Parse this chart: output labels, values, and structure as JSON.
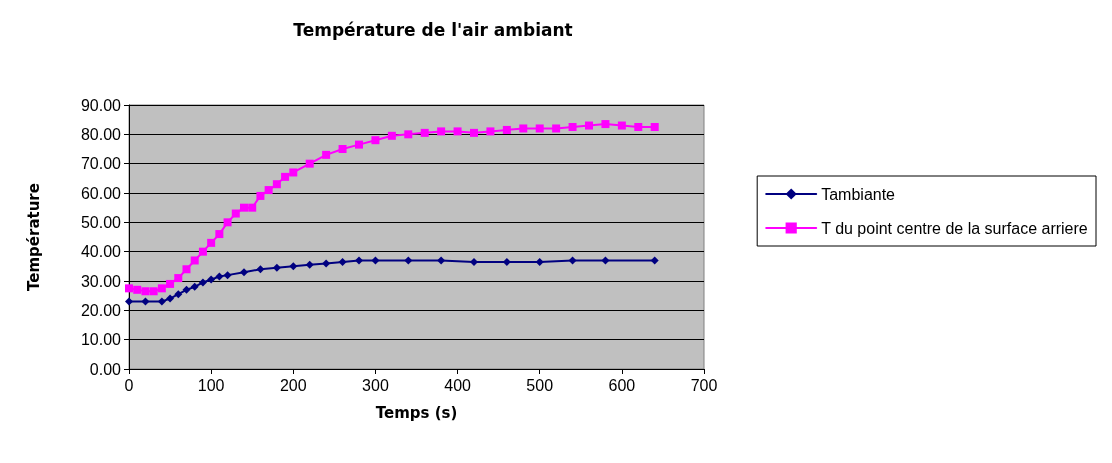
{
  "chart_data": {
    "type": "line",
    "title": "Température de l'air ambiant",
    "xlabel": "Temps (s)",
    "ylabel": "Température",
    "xlim": [
      0,
      700
    ],
    "xticks": [
      0,
      100,
      200,
      300,
      400,
      500,
      600,
      700
    ],
    "ylim": [
      0,
      90
    ],
    "yticks": [
      {
        "value": 0,
        "label": "0.00"
      },
      {
        "value": 10,
        "label": "10.00"
      },
      {
        "value": 20,
        "label": "20.00"
      },
      {
        "value": 30,
        "label": "30.00"
      },
      {
        "value": 40,
        "label": "40.00"
      },
      {
        "value": 50,
        "label": "50.00"
      },
      {
        "value": 60,
        "label": "60.00"
      },
      {
        "value": 70,
        "label": "70.00"
      },
      {
        "value": 80,
        "label": "80.00"
      },
      {
        "value": 90,
        "label": "90.00"
      }
    ],
    "grid": "y",
    "legend": "right",
    "series": [
      {
        "name": "Tambiante",
        "color": "#000080",
        "marker": "diamond",
        "x": [
          0,
          20,
          40,
          50,
          60,
          70,
          80,
          90,
          100,
          110,
          120,
          140,
          160,
          180,
          200,
          220,
          240,
          260,
          280,
          300,
          340,
          380,
          420,
          460,
          500,
          540,
          580,
          640
        ],
        "values": [
          23,
          23,
          23,
          24,
          25.5,
          27,
          28,
          29.5,
          30.5,
          31.5,
          32,
          33,
          34,
          34.5,
          35,
          35.5,
          36,
          36.5,
          37,
          37,
          37,
          37,
          36.5,
          36.5,
          36.5,
          37,
          37,
          37
        ]
      },
      {
        "name": "T du point centre de la surface arriere",
        "color": "#ff00ff",
        "marker": "square",
        "x": [
          0,
          10,
          20,
          30,
          40,
          50,
          60,
          70,
          80,
          90,
          100,
          110,
          120,
          130,
          140,
          150,
          160,
          170,
          180,
          190,
          200,
          220,
          240,
          260,
          280,
          300,
          320,
          340,
          360,
          380,
          400,
          420,
          440,
          460,
          480,
          500,
          520,
          540,
          560,
          580,
          600,
          620,
          640
        ],
        "values": [
          27.5,
          27,
          26.5,
          26.5,
          27.5,
          29,
          31,
          34,
          37,
          40,
          43,
          46,
          50,
          53,
          55,
          55,
          59,
          61,
          63,
          65.5,
          67,
          70,
          73,
          75,
          76.5,
          78,
          79.5,
          80,
          80.5,
          81,
          81,
          80.5,
          81,
          81.5,
          82,
          82,
          82,
          82.5,
          83,
          83.5,
          83,
          82.5,
          82.5
        ]
      }
    ]
  }
}
